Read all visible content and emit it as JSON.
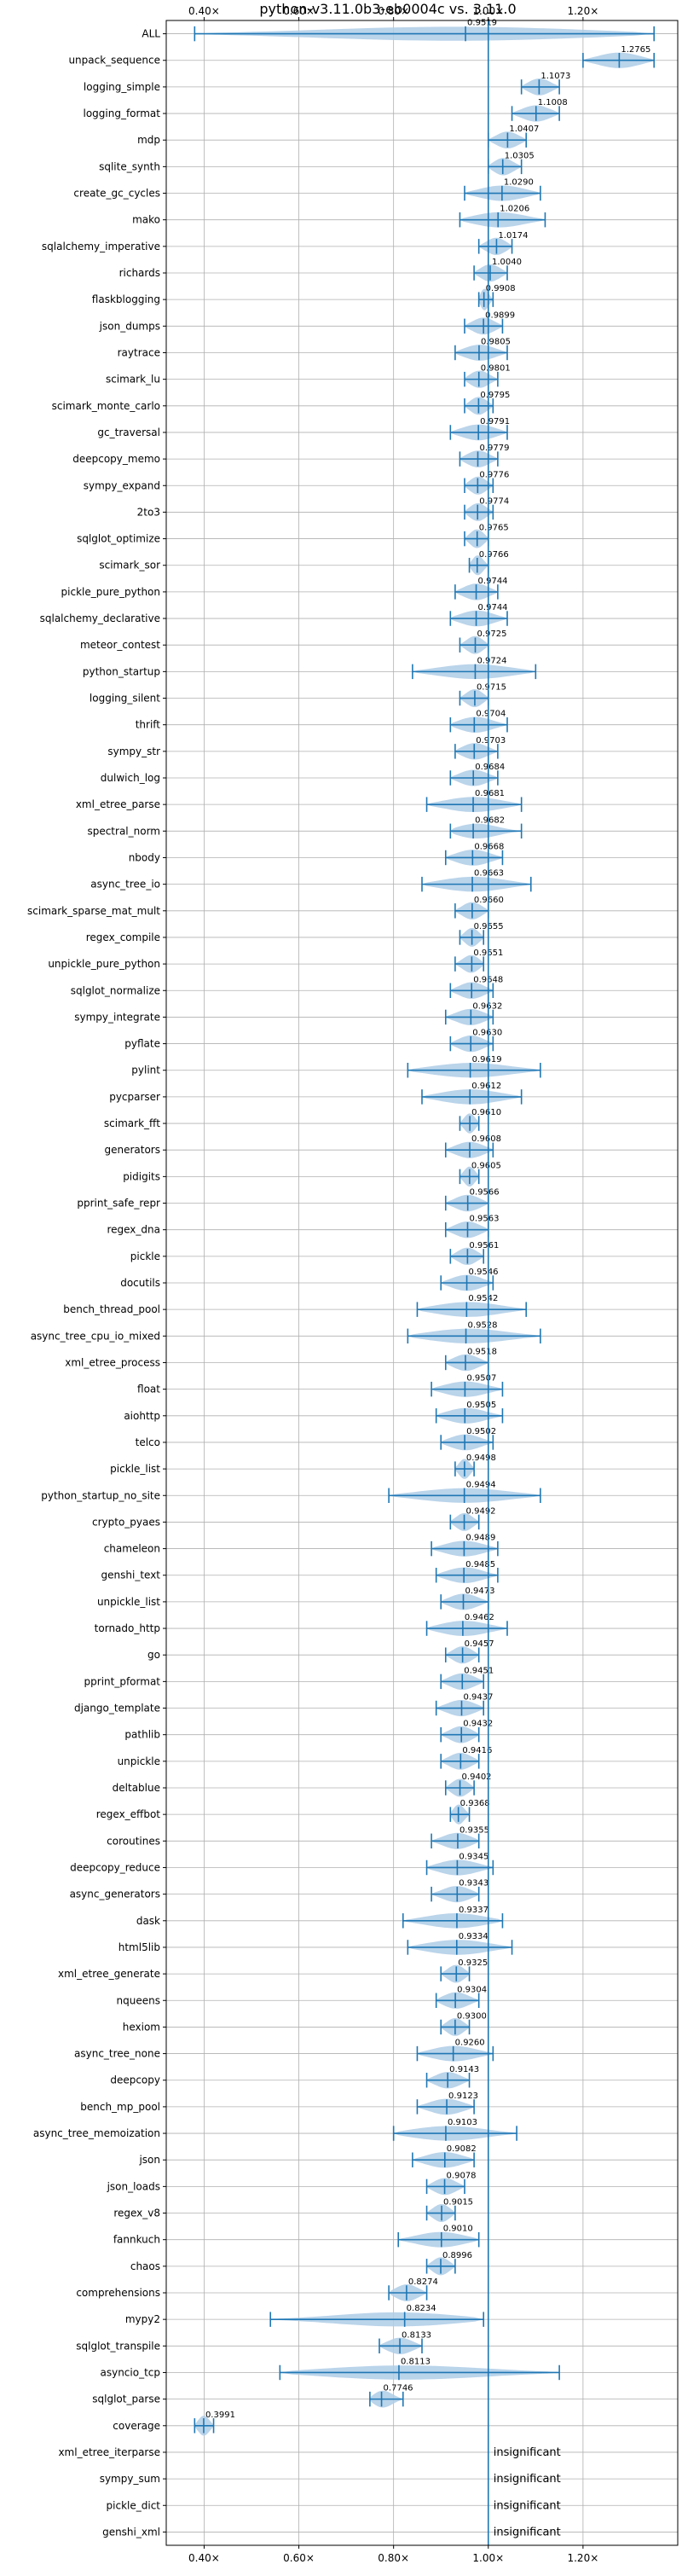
{
  "chart_data": {
    "type": "violin",
    "title": "python-v3.11.0b3-eb0004c vs. 3.11.0",
    "xlim": [
      0.32,
      1.4
    ],
    "xticks": [
      0.4,
      0.6,
      0.8,
      1.0,
      1.2
    ],
    "xtick_labels": [
      "0.40×",
      "0.60×",
      "0.80×",
      "1.00×",
      "1.20×"
    ],
    "reference_x": 1.0,
    "grid": true,
    "insignificant_label": "insignificant",
    "benchmarks": [
      {
        "name": "ALL",
        "mean": 0.9519,
        "min": 0.38,
        "max": 1.35
      },
      {
        "name": "unpack_sequence",
        "mean": 1.2765,
        "min": 1.2,
        "max": 1.35
      },
      {
        "name": "logging_simple",
        "mean": 1.1073,
        "min": 1.07,
        "max": 1.15
      },
      {
        "name": "logging_format",
        "mean": 1.1008,
        "min": 1.05,
        "max": 1.15
      },
      {
        "name": "mdp",
        "mean": 1.0407,
        "min": 1.0,
        "max": 1.08
      },
      {
        "name": "sqlite_synth",
        "mean": 1.0305,
        "min": 1.0,
        "max": 1.07
      },
      {
        "name": "create_gc_cycles",
        "mean": 1.029,
        "min": 0.95,
        "max": 1.11
      },
      {
        "name": "mako",
        "mean": 1.0206,
        "min": 0.94,
        "max": 1.12
      },
      {
        "name": "sqlalchemy_imperative",
        "mean": 1.0174,
        "min": 0.98,
        "max": 1.05
      },
      {
        "name": "richards",
        "mean": 1.004,
        "min": 0.97,
        "max": 1.04
      },
      {
        "name": "flaskblogging",
        "mean": 0.9908,
        "min": 0.98,
        "max": 1.01
      },
      {
        "name": "json_dumps",
        "mean": 0.9899,
        "min": 0.95,
        "max": 1.03
      },
      {
        "name": "raytrace",
        "mean": 0.9805,
        "min": 0.93,
        "max": 1.04
      },
      {
        "name": "scimark_lu",
        "mean": 0.9801,
        "min": 0.95,
        "max": 1.02
      },
      {
        "name": "scimark_monte_carlo",
        "mean": 0.9795,
        "min": 0.95,
        "max": 1.01
      },
      {
        "name": "gc_traversal",
        "mean": 0.9791,
        "min": 0.92,
        "max": 1.04
      },
      {
        "name": "deepcopy_memo",
        "mean": 0.9779,
        "min": 0.94,
        "max": 1.02
      },
      {
        "name": "sympy_expand",
        "mean": 0.9776,
        "min": 0.95,
        "max": 1.01
      },
      {
        "name": "2to3",
        "mean": 0.9774,
        "min": 0.95,
        "max": 1.01
      },
      {
        "name": "sqlglot_optimize",
        "mean": 0.9765,
        "min": 0.95,
        "max": 1.0
      },
      {
        "name": "scimark_sor",
        "mean": 0.9766,
        "min": 0.96,
        "max": 1.0
      },
      {
        "name": "pickle_pure_python",
        "mean": 0.9744,
        "min": 0.93,
        "max": 1.02
      },
      {
        "name": "sqlalchemy_declarative",
        "mean": 0.9744,
        "min": 0.92,
        "max": 1.04
      },
      {
        "name": "meteor_contest",
        "mean": 0.9725,
        "min": 0.94,
        "max": 1.0
      },
      {
        "name": "python_startup",
        "mean": 0.9724,
        "min": 0.84,
        "max": 1.1
      },
      {
        "name": "logging_silent",
        "mean": 0.9715,
        "min": 0.94,
        "max": 1.0
      },
      {
        "name": "thrift",
        "mean": 0.9704,
        "min": 0.92,
        "max": 1.04
      },
      {
        "name": "sympy_str",
        "mean": 0.9703,
        "min": 0.93,
        "max": 1.02
      },
      {
        "name": "dulwich_log",
        "mean": 0.9684,
        "min": 0.92,
        "max": 1.02
      },
      {
        "name": "xml_etree_parse",
        "mean": 0.9681,
        "min": 0.87,
        "max": 1.07
      },
      {
        "name": "spectral_norm",
        "mean": 0.9682,
        "min": 0.92,
        "max": 1.07
      },
      {
        "name": "nbody",
        "mean": 0.9668,
        "min": 0.91,
        "max": 1.03
      },
      {
        "name": "async_tree_io",
        "mean": 0.9663,
        "min": 0.86,
        "max": 1.09
      },
      {
        "name": "scimark_sparse_mat_mult",
        "mean": 0.966,
        "min": 0.93,
        "max": 1.0
      },
      {
        "name": "regex_compile",
        "mean": 0.9655,
        "min": 0.94,
        "max": 0.99
      },
      {
        "name": "unpickle_pure_python",
        "mean": 0.9651,
        "min": 0.93,
        "max": 0.99
      },
      {
        "name": "sqlglot_normalize",
        "mean": 0.9648,
        "min": 0.92,
        "max": 1.01
      },
      {
        "name": "sympy_integrate",
        "mean": 0.9632,
        "min": 0.91,
        "max": 1.01
      },
      {
        "name": "pyflate",
        "mean": 0.963,
        "min": 0.92,
        "max": 1.01
      },
      {
        "name": "pylint",
        "mean": 0.9619,
        "min": 0.83,
        "max": 1.11
      },
      {
        "name": "pycparser",
        "mean": 0.9612,
        "min": 0.86,
        "max": 1.07
      },
      {
        "name": "scimark_fft",
        "mean": 0.961,
        "min": 0.94,
        "max": 0.98
      },
      {
        "name": "generators",
        "mean": 0.9608,
        "min": 0.91,
        "max": 1.01
      },
      {
        "name": "pidigits",
        "mean": 0.9605,
        "min": 0.94,
        "max": 0.98
      },
      {
        "name": "pprint_safe_repr",
        "mean": 0.9566,
        "min": 0.91,
        "max": 1.0
      },
      {
        "name": "regex_dna",
        "mean": 0.9563,
        "min": 0.91,
        "max": 1.0
      },
      {
        "name": "pickle",
        "mean": 0.9561,
        "min": 0.92,
        "max": 0.99
      },
      {
        "name": "docutils",
        "mean": 0.9546,
        "min": 0.9,
        "max": 1.01
      },
      {
        "name": "bench_thread_pool",
        "mean": 0.9542,
        "min": 0.85,
        "max": 1.08
      },
      {
        "name": "async_tree_cpu_io_mixed",
        "mean": 0.9528,
        "min": 0.83,
        "max": 1.11
      },
      {
        "name": "xml_etree_process",
        "mean": 0.9518,
        "min": 0.91,
        "max": 1.0
      },
      {
        "name": "float",
        "mean": 0.9507,
        "min": 0.88,
        "max": 1.03
      },
      {
        "name": "aiohttp",
        "mean": 0.9505,
        "min": 0.89,
        "max": 1.03
      },
      {
        "name": "telco",
        "mean": 0.9502,
        "min": 0.9,
        "max": 1.01
      },
      {
        "name": "pickle_list",
        "mean": 0.9498,
        "min": 0.93,
        "max": 0.97
      },
      {
        "name": "python_startup_no_site",
        "mean": 0.9494,
        "min": 0.79,
        "max": 1.11
      },
      {
        "name": "crypto_pyaes",
        "mean": 0.9492,
        "min": 0.92,
        "max": 0.98
      },
      {
        "name": "chameleon",
        "mean": 0.9489,
        "min": 0.88,
        "max": 1.02
      },
      {
        "name": "genshi_text",
        "mean": 0.9485,
        "min": 0.89,
        "max": 1.02
      },
      {
        "name": "unpickle_list",
        "mean": 0.9473,
        "min": 0.9,
        "max": 1.0
      },
      {
        "name": "tornado_http",
        "mean": 0.9462,
        "min": 0.87,
        "max": 1.04
      },
      {
        "name": "go",
        "mean": 0.9457,
        "min": 0.91,
        "max": 0.98
      },
      {
        "name": "pprint_pformat",
        "mean": 0.9451,
        "min": 0.9,
        "max": 0.99
      },
      {
        "name": "django_template",
        "mean": 0.9437,
        "min": 0.89,
        "max": 0.99
      },
      {
        "name": "pathlib",
        "mean": 0.9432,
        "min": 0.9,
        "max": 0.98
      },
      {
        "name": "unpickle",
        "mean": 0.9416,
        "min": 0.9,
        "max": 0.98
      },
      {
        "name": "deltablue",
        "mean": 0.9402,
        "min": 0.91,
        "max": 0.97
      },
      {
        "name": "regex_effbot",
        "mean": 0.9368,
        "min": 0.92,
        "max": 0.96
      },
      {
        "name": "coroutines",
        "mean": 0.9355,
        "min": 0.88,
        "max": 0.98
      },
      {
        "name": "deepcopy_reduce",
        "mean": 0.9345,
        "min": 0.87,
        "max": 1.01
      },
      {
        "name": "async_generators",
        "mean": 0.9343,
        "min": 0.88,
        "max": 0.98
      },
      {
        "name": "dask",
        "mean": 0.9337,
        "min": 0.82,
        "max": 1.03
      },
      {
        "name": "html5lib",
        "mean": 0.9334,
        "min": 0.83,
        "max": 1.05
      },
      {
        "name": "xml_etree_generate",
        "mean": 0.9325,
        "min": 0.9,
        "max": 0.96
      },
      {
        "name": "nqueens",
        "mean": 0.9304,
        "min": 0.89,
        "max": 0.98
      },
      {
        "name": "hexiom",
        "mean": 0.93,
        "min": 0.9,
        "max": 0.96
      },
      {
        "name": "async_tree_none",
        "mean": 0.926,
        "min": 0.85,
        "max": 1.01
      },
      {
        "name": "deepcopy",
        "mean": 0.9143,
        "min": 0.87,
        "max": 0.96
      },
      {
        "name": "bench_mp_pool",
        "mean": 0.9123,
        "min": 0.85,
        "max": 0.97
      },
      {
        "name": "async_tree_memoization",
        "mean": 0.9103,
        "min": 0.8,
        "max": 1.06
      },
      {
        "name": "json",
        "mean": 0.9082,
        "min": 0.84,
        "max": 0.97
      },
      {
        "name": "json_loads",
        "mean": 0.9078,
        "min": 0.87,
        "max": 0.95
      },
      {
        "name": "regex_v8",
        "mean": 0.9015,
        "min": 0.87,
        "max": 0.93
      },
      {
        "name": "fannkuch",
        "mean": 0.901,
        "min": 0.81,
        "max": 0.98
      },
      {
        "name": "chaos",
        "mean": 0.8996,
        "min": 0.87,
        "max": 0.93
      },
      {
        "name": "comprehensions",
        "mean": 0.8274,
        "min": 0.79,
        "max": 0.87
      },
      {
        "name": "mypy2",
        "mean": 0.8234,
        "min": 0.54,
        "max": 0.99
      },
      {
        "name": "sqlglot_transpile",
        "mean": 0.8133,
        "min": 0.77,
        "max": 0.86
      },
      {
        "name": "asyncio_tcp",
        "mean": 0.8113,
        "min": 0.56,
        "max": 1.15
      },
      {
        "name": "sqlglot_parse",
        "mean": 0.7746,
        "min": 0.75,
        "max": 0.82
      },
      {
        "name": "coverage",
        "mean": 0.3991,
        "min": 0.38,
        "max": 0.42
      },
      {
        "name": "xml_etree_iterparse",
        "insignificant": true
      },
      {
        "name": "sympy_sum",
        "insignificant": true
      },
      {
        "name": "pickle_dict",
        "insignificant": true
      },
      {
        "name": "genshi_xml",
        "insignificant": true
      }
    ]
  }
}
